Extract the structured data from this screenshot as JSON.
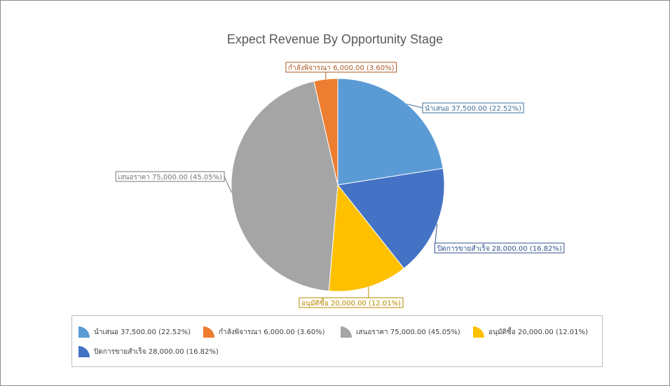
{
  "chart_data": {
    "type": "pie",
    "title": "Expect Revenue By Opportunity Stage",
    "slices": [
      {
        "label": "นำเสนอ",
        "value": 37500,
        "value_text": "37,500.00",
        "percent_text": "22.52%",
        "color": "#5b9bd5"
      },
      {
        "label": "ปิดการขายสำเร็จ",
        "value": 28000,
        "value_text": "28,000.00",
        "percent_text": "16.82%",
        "color": "#4472c4"
      },
      {
        "label": "อนุมัติซื้อ",
        "value": 20000,
        "value_text": "20,000.00",
        "percent_text": "12.01%",
        "color": "#ffc000"
      },
      {
        "label": "เสนอราคา",
        "value": 75000,
        "value_text": "75,000.00",
        "percent_text": "45.05%",
        "color": "#a5a5a5"
      },
      {
        "label": "กำลังพิจารณา",
        "value": 6000,
        "value_text": "6,000.00",
        "percent_text": "3.60%",
        "color": "#ed7d31"
      }
    ],
    "start_angle_deg": 90,
    "direction": "clockwise",
    "data_labels": "outside-boxed",
    "legend": {
      "position": "bottom",
      "items": [
        {
          "label": "นำเสนอ",
          "value_text": "37,500.00",
          "percent_text": "22.52%",
          "color": "#5b9bd5"
        },
        {
          "label": "กำลังพิจารณา",
          "value_text": "6,000.00",
          "percent_text": "3.60%",
          "color": "#ed7d31"
        },
        {
          "label": "เสนอราคา",
          "value_text": "75,000.00",
          "percent_text": "45.05%",
          "color": "#a5a5a5"
        },
        {
          "label": "อนุมัติซื้อ",
          "value_text": "20,000.00",
          "percent_text": "12.01%",
          "color": "#ffc000"
        },
        {
          "label": "ปิดการขายสำเร็จ",
          "value_text": "28,000.00",
          "percent_text": "16.82%",
          "color": "#4472c4"
        }
      ]
    }
  }
}
